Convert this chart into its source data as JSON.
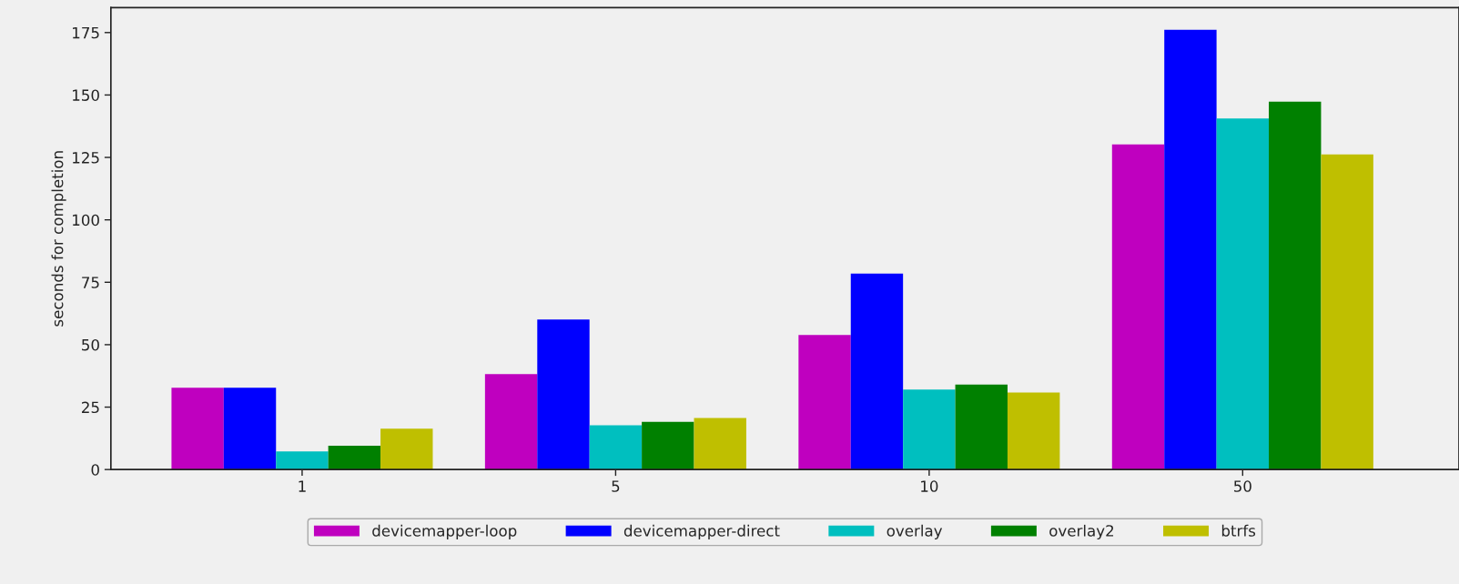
{
  "chart_data": {
    "type": "bar",
    "ylabel": "seconds for completion",
    "categories": [
      "1",
      "5",
      "10",
      "50"
    ],
    "series": [
      {
        "name": "devicemapper-loop",
        "color": "#bf00bf",
        "values": [
          32.8,
          38.2,
          53.9,
          130.2
        ]
      },
      {
        "name": "devicemapper-direct",
        "color": "#0000ff",
        "values": [
          32.8,
          60.1,
          78.5,
          176.1
        ]
      },
      {
        "name": "overlay",
        "color": "#00bfbf",
        "values": [
          7.3,
          17.7,
          32.0,
          140.6
        ]
      },
      {
        "name": "overlay2",
        "color": "#008000",
        "values": [
          9.5,
          19.1,
          34.0,
          147.3
        ]
      },
      {
        "name": "btrfs",
        "color": "#bfbf00",
        "values": [
          16.4,
          20.6,
          30.8,
          126.2
        ]
      }
    ],
    "ylim": [
      0,
      185
    ],
    "yticks": [
      0,
      25,
      50,
      75,
      100,
      125,
      150,
      175
    ],
    "grid": false,
    "legend": "bottom"
  }
}
